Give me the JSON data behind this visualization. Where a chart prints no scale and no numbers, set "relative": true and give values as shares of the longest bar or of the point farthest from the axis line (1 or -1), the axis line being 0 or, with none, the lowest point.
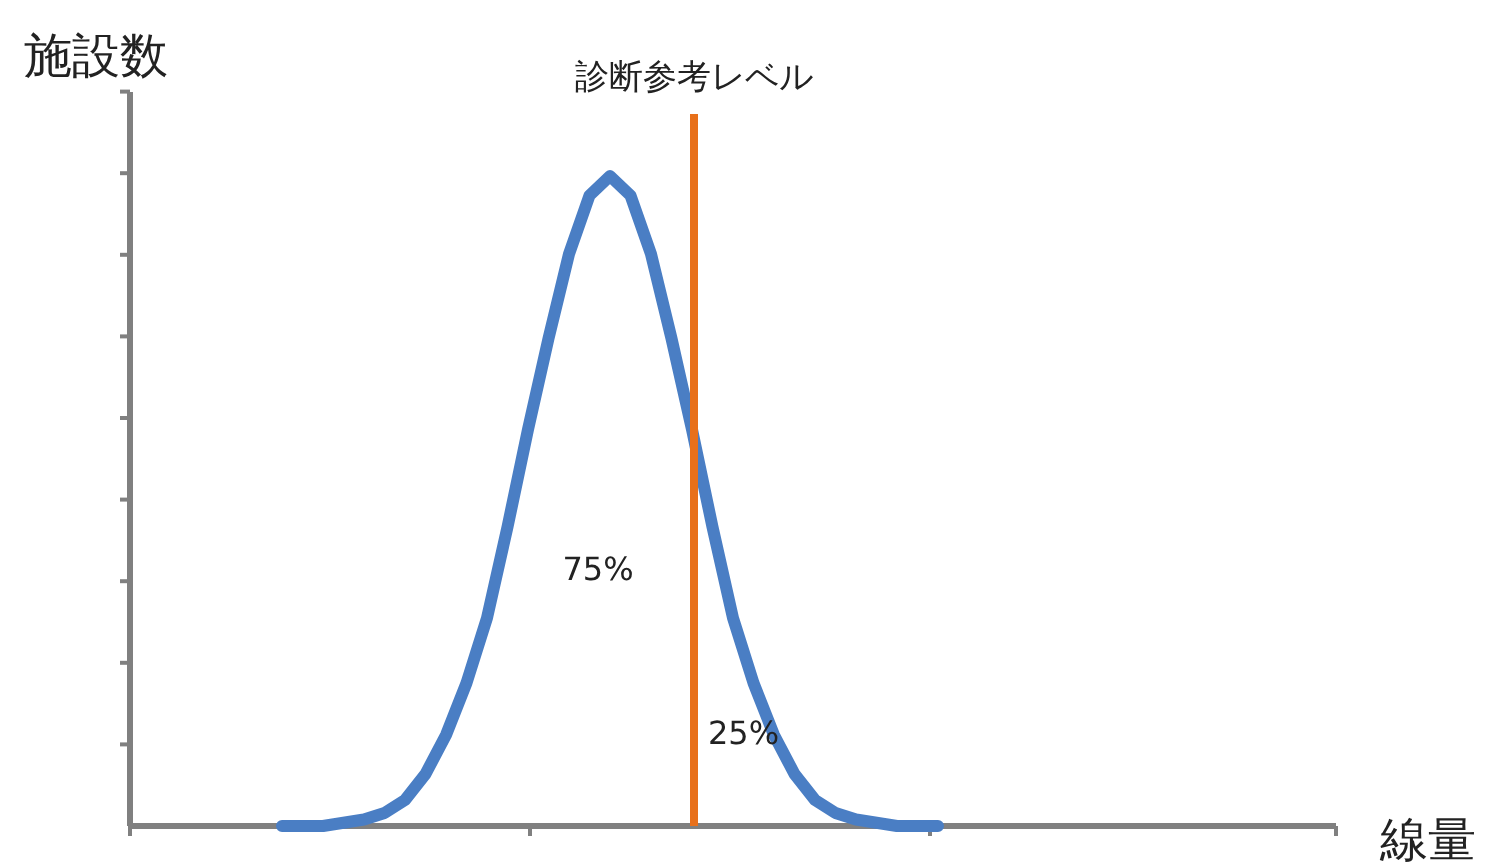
{
  "chart_data": {
    "type": "line",
    "relative": true,
    "ylabel": "施設数",
    "categories": [
      null,
      null,
      null,
      null,
      null,
      null,
      null,
      null,
      null,
      null,
      null,
      null,
      null,
      null,
      null,
      null,
      null,
      null,
      null,
      null,
      null,
      null,
      null,
      null,
      null,
      null,
      null,
      null,
      null,
      null,
      null,
      null,
      null
    ],
    "series": [
      {
        "color": "#4a7ec4",
        "values": [
          0,
          0,
          0,
          0.005,
          0.01,
          0.02,
          0.04,
          0.08,
          0.14,
          0.22,
          0.32,
          0.46,
          0.61,
          0.75,
          0.88,
          0.97,
          1,
          0.97,
          0.88,
          0.75,
          0.61,
          0.46,
          0.32,
          0.22,
          0.14,
          0.08,
          0.04,
          0.02,
          0.01,
          0.005,
          0,
          0,
          0
        ]
      }
    ],
    "annotations": [
      "診断参考レベル",
      "75%",
      "25%",
      "線量"
    ],
    "marker": "none",
    "line_style": "solid"
  }
}
